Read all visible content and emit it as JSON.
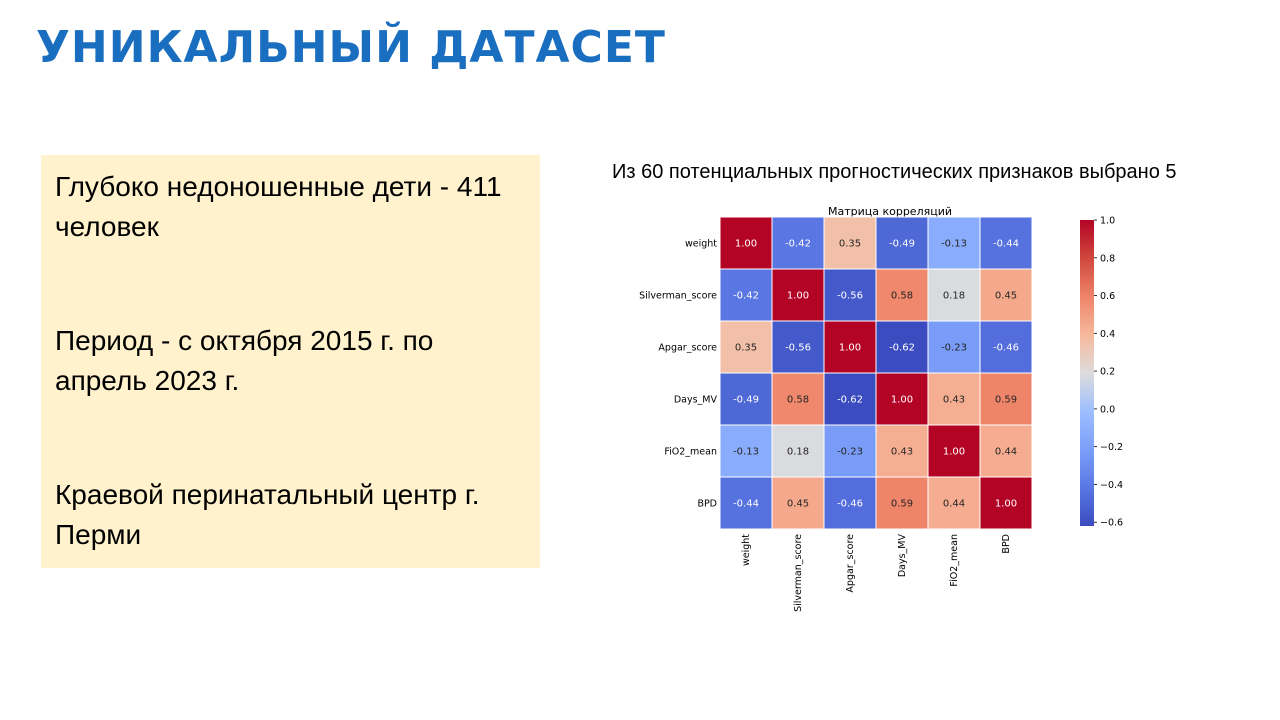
{
  "slide": {
    "title": "УНИКАЛЬНЫЙ ДАТАСЕТ",
    "info_box": {
      "items": [
        "Глубоко недоношенные дети  - 411 человек",
        "Период - с октября 2015 г. по апрель 2023 г.",
        "Краевой перинатальный центр г. Перми"
      ]
    },
    "caption": "Из 60 потенциальных прогностических признаков выбрано 5",
    "colors": {
      "title": "#1a6ec0",
      "info_box_bg": "#fff2cc"
    }
  },
  "chart_data": {
    "type": "heatmap",
    "title": "Матрица корреляций",
    "rows": [
      "weight",
      "Silverman_score",
      "Apgar_score",
      "Days_MV",
      "FiO2_mean",
      "BPD"
    ],
    "cols": [
      "weight",
      "Silverman_score",
      "Apgar_score",
      "Days_MV",
      "FiO2_mean",
      "BPD"
    ],
    "values": [
      [
        1.0,
        -0.42,
        0.35,
        -0.49,
        -0.13,
        -0.44
      ],
      [
        -0.42,
        1.0,
        -0.56,
        0.58,
        0.18,
        0.45
      ],
      [
        0.35,
        -0.56,
        1.0,
        -0.62,
        -0.23,
        -0.46
      ],
      [
        -0.49,
        0.58,
        -0.62,
        1.0,
        0.43,
        0.59
      ],
      [
        -0.13,
        0.18,
        -0.23,
        0.43,
        1.0,
        0.44
      ],
      [
        -0.44,
        0.45,
        -0.46,
        0.59,
        0.44,
        1.0
      ]
    ],
    "colorscale": "coolwarm",
    "vmin": -0.62,
    "vmax": 1.0,
    "colorbar_ticks": [
      "1.0",
      "0.8",
      "0.6",
      "0.4",
      "0.2",
      "0.0",
      "−0.2",
      "−0.4",
      "−0.6"
    ],
    "colorbar_tick_values": [
      1.0,
      0.8,
      0.6,
      0.4,
      0.2,
      0.0,
      -0.2,
      -0.4,
      -0.6
    ],
    "grid": true
  }
}
